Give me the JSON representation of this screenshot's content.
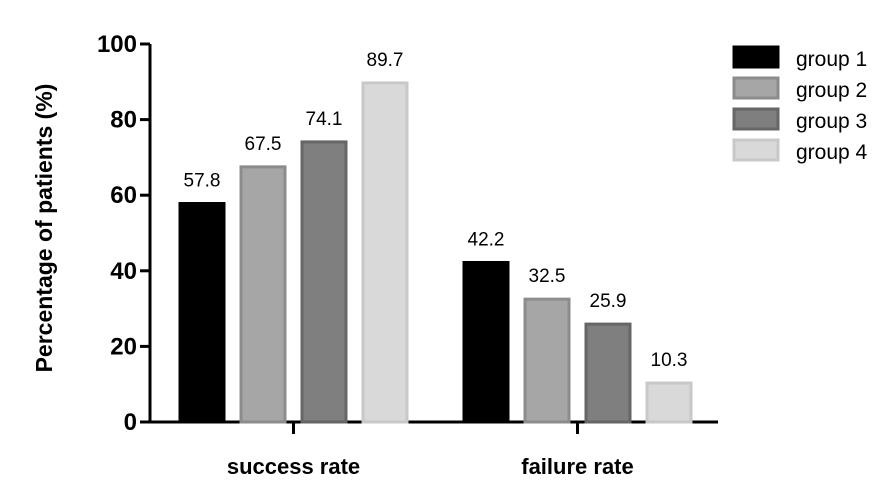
{
  "chart_data": {
    "type": "bar",
    "categories": [
      "success rate",
      "failure rate"
    ],
    "series": [
      {
        "name": "group 1",
        "values": [
          57.8,
          42.2
        ],
        "color": "#000000",
        "edge": "#000000"
      },
      {
        "name": "group 2",
        "values": [
          67.5,
          32.5
        ],
        "color": "#a6a6a6",
        "edge": "#8c8c8c"
      },
      {
        "name": "group 3",
        "values": [
          74.1,
          25.9
        ],
        "color": "#7f7f7f",
        "edge": "#666666"
      },
      {
        "name": "group 4",
        "values": [
          89.7,
          10.3
        ],
        "color": "#d9d9d9",
        "edge": "#c8c8c8"
      }
    ],
    "title": "",
    "xlabel": "",
    "ylabel": "Percentage of patients (%)",
    "ylim": [
      0,
      100
    ],
    "yticks": [
      0,
      20,
      40,
      60,
      80,
      100
    ],
    "data_labels": true,
    "grid": false,
    "legend": "right"
  }
}
